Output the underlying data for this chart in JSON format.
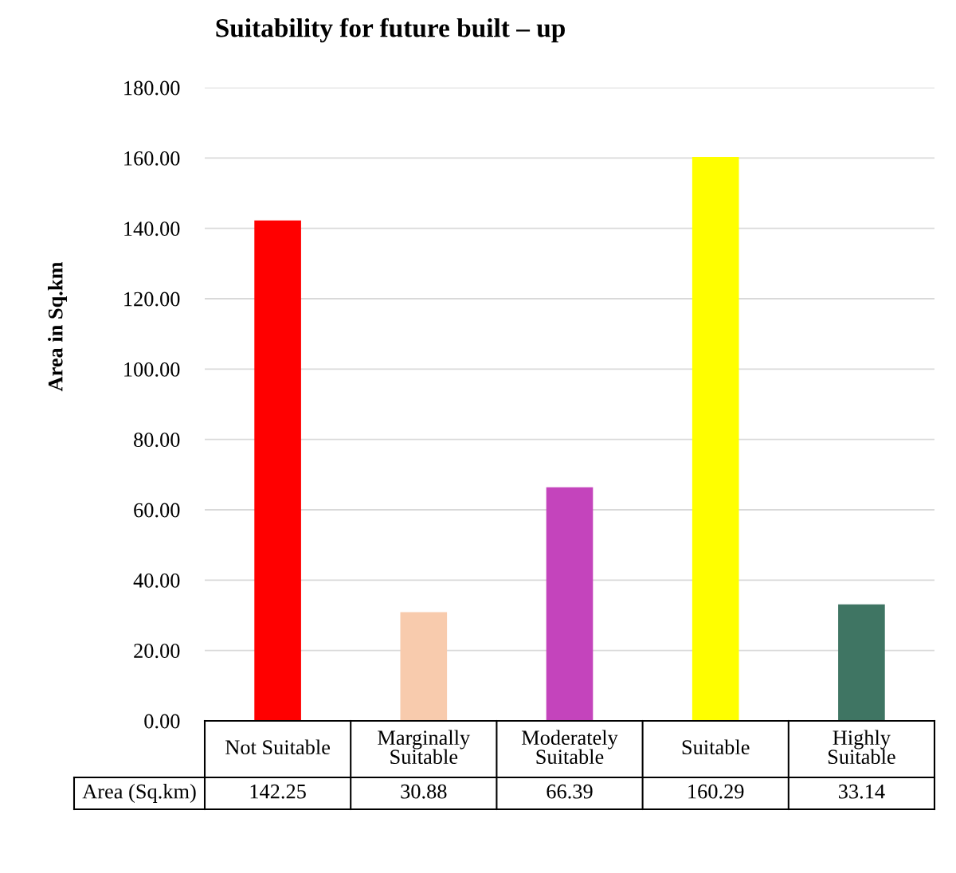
{
  "chart_data": {
    "type": "bar",
    "title": "Suitability for future built – up",
    "ylabel": "Area in Sq.km",
    "categories": [
      "Not Suitable",
      "Marginally\nSuitable",
      "Moderately\nSuitable",
      "Suitable",
      "Highly\nSuitable"
    ],
    "series": [
      {
        "name": "Area (Sq.km)",
        "values": [
          142.25,
          30.88,
          66.39,
          160.29,
          33.14
        ],
        "colors": [
          "#ff0000",
          "#f8cbad",
          "#c444bc",
          "#ffff00",
          "#3f7563"
        ]
      }
    ],
    "ylim": [
      0,
      180
    ],
    "yticks": [
      {
        "value": 0,
        "label": "0.00"
      },
      {
        "value": 20,
        "label": "20.00"
      },
      {
        "value": 40,
        "label": "40.00"
      },
      {
        "value": 60,
        "label": "60.00"
      },
      {
        "value": 80,
        "label": "80.00"
      },
      {
        "value": 100,
        "label": "100.00"
      },
      {
        "value": 120,
        "label": "120.00"
      },
      {
        "value": 140,
        "label": "140.00"
      },
      {
        "value": 160,
        "label": "160.00"
      },
      {
        "value": 180,
        "label": "180.00"
      }
    ],
    "grid": "y",
    "data_labels": true
  }
}
